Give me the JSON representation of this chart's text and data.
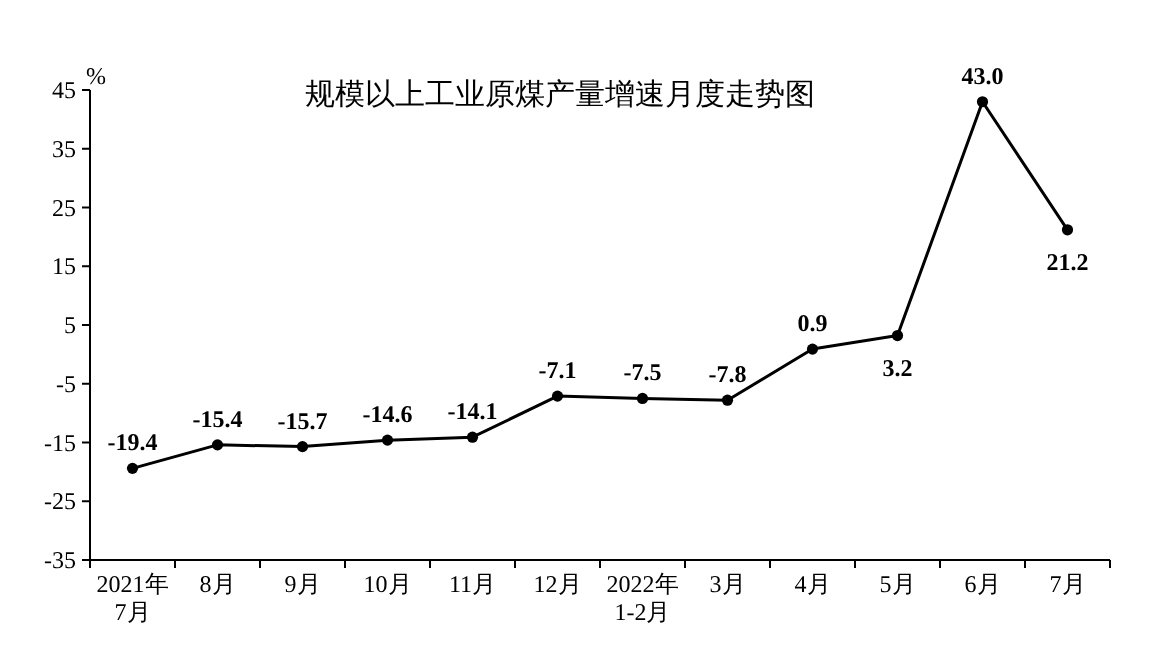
{
  "chart_data": {
    "type": "line",
    "title": "规模以上工业原煤产量增速月度走势图",
    "ylabel": "%",
    "categories": [
      "2021年\n7月",
      "8月",
      "9月",
      "10月",
      "11月",
      "12月",
      "2022年\n1-2月",
      "3月",
      "4月",
      "5月",
      "6月",
      "7月"
    ],
    "series": [
      {
        "color": "#000000",
        "values": [
          -19.4,
          -15.4,
          -15.7,
          -14.6,
          -14.1,
          -7.1,
          -7.5,
          -7.8,
          0.9,
          3.2,
          43.0,
          21.2
        ],
        "value_labels": [
          "-19.4",
          "-15.4",
          "-15.7",
          "-14.6",
          "-14.1",
          "-7.1",
          "-7.5",
          "-7.8",
          "0.9",
          "3.2",
          "43.0",
          "21.2"
        ]
      }
    ],
    "ylim": [
      -35,
      45
    ],
    "yticks": [
      -35,
      -25,
      -15,
      -5,
      5,
      15,
      25,
      35,
      45
    ],
    "marker": "circle",
    "line_style": "solid",
    "grid": false
  }
}
